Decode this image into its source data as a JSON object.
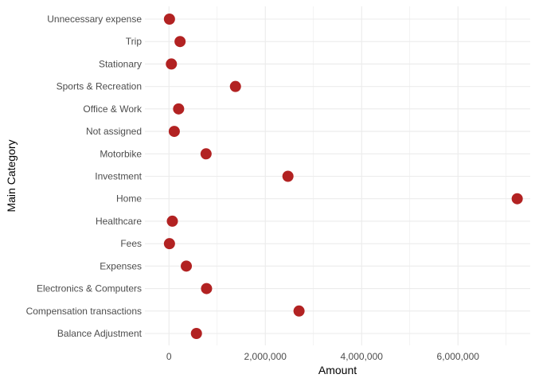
{
  "chart_data": {
    "type": "scatter",
    "title": "",
    "xlabel": "Amount",
    "ylabel": "Main Category",
    "categories": [
      "Balance Adjustment",
      "Compensation transactions",
      "Electronics & Computers",
      "Expenses",
      "Fees",
      "Healthcare",
      "Home",
      "Investment",
      "Motorbike",
      "Not assigned",
      "Office & Work",
      "Sports & Recreation",
      "Stationary",
      "Trip",
      "Unnecessary expense"
    ],
    "values": [
      570000,
      2700000,
      780000,
      360000,
      10000,
      70000,
      7230000,
      2470000,
      770000,
      110000,
      200000,
      1380000,
      50000,
      230000,
      10000
    ],
    "x_ticks": [
      0,
      2000000,
      4000000,
      6000000
    ],
    "x_tick_labels": [
      "0",
      "2,000,000",
      "4,000,000",
      "6,000,000"
    ],
    "xlim": [
      -500000,
      7500000
    ],
    "grid": true,
    "legend": "none",
    "point_color": "#b22222",
    "grid_color": "#ebebeb",
    "background": "#ffffff"
  }
}
